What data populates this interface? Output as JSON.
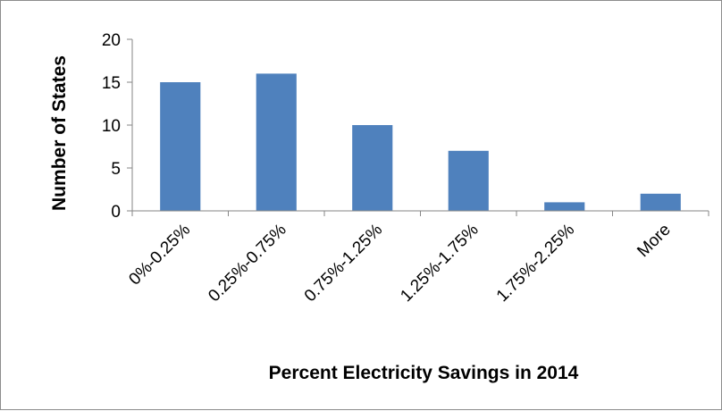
{
  "chart_data": {
    "type": "bar",
    "title": "",
    "xlabel": "Percent Electricity Savings in 2014",
    "ylabel": "Number of States",
    "categories": [
      "0%-0.25%",
      "0.25%-0.75%",
      "0.75%-1.25%",
      "1.25%-1.75%",
      "1.75%-2.25%",
      "More"
    ],
    "values": [
      15,
      16,
      10,
      7,
      1,
      2
    ],
    "ylim": [
      0,
      20
    ],
    "yticks": [
      0,
      5,
      10,
      15,
      20
    ],
    "grid": false,
    "legend": "none",
    "bar_color": "#4f81bd",
    "axis_color": "#868686"
  }
}
